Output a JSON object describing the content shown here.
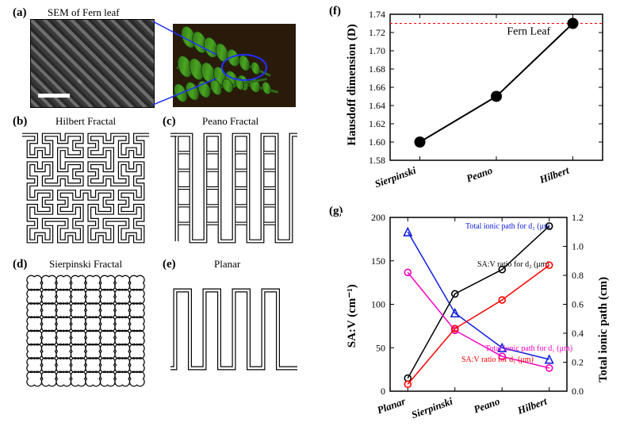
{
  "labels": {
    "a": "(a)",
    "b": "(b)",
    "c": "(c)",
    "d": "(d)",
    "e": "(e)",
    "f": "(f)",
    "g": "(g)"
  },
  "titles": {
    "a": "SEM of Fern leaf",
    "b": "Hilbert Fractal",
    "c": "Peano Fractal",
    "d": "Sierpinski Fractal",
    "e": "Planar"
  },
  "chart_f": {
    "type": "line",
    "categories": [
      "Sierpinski",
      "Peano",
      "Hilbert"
    ],
    "values": [
      1.6,
      1.65,
      1.73
    ],
    "marker_color": "#000000",
    "line_color": "#000000",
    "line_width": 2,
    "marker_size": 7,
    "ref_line_value": 1.73,
    "ref_line_color": "#ff0000",
    "ref_label": "Fern Leaf",
    "ref_label_color": "#000000",
    "ylabel": "Hausdoff dimension (D)",
    "ylim": [
      1.58,
      1.74
    ],
    "yticks": [
      1.58,
      1.6,
      1.62,
      1.64,
      1.66,
      1.68,
      1.7,
      1.72,
      1.74
    ],
    "axis_color": "#000000",
    "bg": "#ffffff"
  },
  "chart_g": {
    "type": "line_multi",
    "categories": [
      "Planar",
      "Sierpinski",
      "Peano",
      "Hilbert"
    ],
    "ylabel_left": "SA:V (cm⁻¹)",
    "ylabel_right": "Total ionic path (cm)",
    "ylim_left": [
      0,
      200
    ],
    "yticks_left": [
      0,
      50,
      100,
      150,
      200
    ],
    "ylim_right": [
      0.0,
      1.2
    ],
    "yticks_right": [
      0.0,
      0.2,
      0.4,
      0.6,
      0.8,
      1.0,
      1.2
    ],
    "series": [
      {
        "name": "Total ionic path for d₂ (μm)",
        "axis": "right",
        "values": [
          1.1,
          0.54,
          0.3,
          0.22
        ],
        "color": "#1020e0",
        "marker": "triangle-open",
        "marker_size": 8,
        "line_width": 1.5
      },
      {
        "name": "SA:V ratio for d₂ (μm)",
        "axis": "left",
        "values": [
          15,
          112,
          140,
          190
        ],
        "color": "#000000",
        "marker": "circle-open",
        "marker_size": 8,
        "line_width": 1.5
      },
      {
        "name": "Total ionic path for d₁ (μm)",
        "axis": "right",
        "values": [
          0.82,
          0.42,
          0.24,
          0.16
        ],
        "color": "#ff00c0",
        "marker": "circle-open",
        "marker_size": 8,
        "line_width": 1.5
      },
      {
        "name": "SA:V ratio for d₁ (μm)",
        "axis": "left",
        "values": [
          8,
          72,
          105,
          145
        ],
        "color": "#ff0000",
        "marker": "circle-open",
        "marker_size": 8,
        "line_width": 1.5
      }
    ],
    "series_label_positions": [
      {
        "x": 95,
        "y": 14
      },
      {
        "x": 110,
        "y": 62
      },
      {
        "x": 120,
        "y": 168
      },
      {
        "x": 90,
        "y": 182
      }
    ],
    "axis_color": "#000000",
    "bg": "#ffffff"
  }
}
